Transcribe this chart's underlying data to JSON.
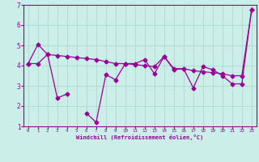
{
  "xlabel": "Windchill (Refroidissement éolien,°C)",
  "bg_color": "#cceee8",
  "line_color": "#990099",
  "grid_color": "#aaddcc",
  "hours": [
    0,
    1,
    2,
    3,
    4,
    5,
    6,
    7,
    8,
    9,
    10,
    11,
    12,
    13,
    14,
    15,
    16,
    17,
    18,
    19,
    20,
    21,
    22,
    23
  ],
  "series_jagged": [
    4.1,
    5.05,
    4.55,
    2.4,
    2.6,
    null,
    1.65,
    1.2,
    3.55,
    3.3,
    4.1,
    4.1,
    4.3,
    3.6,
    4.45,
    3.8,
    3.85,
    2.9,
    3.95,
    3.8,
    3.5,
    3.1,
    3.1,
    6.75
  ],
  "series_trend": [
    4.1,
    4.1,
    4.55,
    4.5,
    4.45,
    4.4,
    4.35,
    4.3,
    4.2,
    4.1,
    4.1,
    4.05,
    4.0,
    3.95,
    4.45,
    3.85,
    3.85,
    3.75,
    3.7,
    3.65,
    3.6,
    3.5,
    3.5,
    6.75
  ],
  "ylim": [
    1,
    7
  ],
  "yticks": [
    1,
    2,
    3,
    4,
    5,
    6,
    7
  ]
}
